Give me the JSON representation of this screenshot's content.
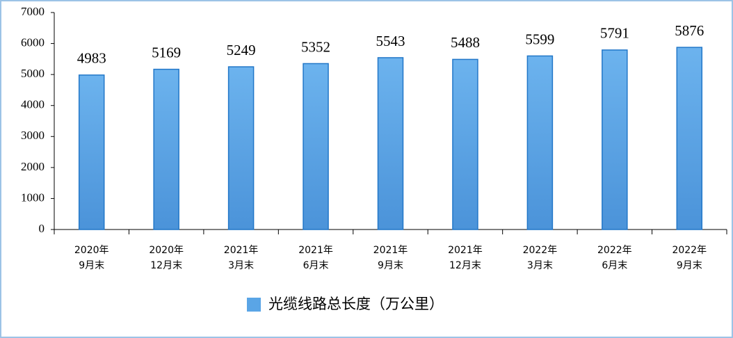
{
  "chart_data": {
    "type": "bar",
    "categories": [
      [
        "2020年",
        "9月末"
      ],
      [
        "2020年",
        "12月末"
      ],
      [
        "2021年",
        "3月末"
      ],
      [
        "2021年",
        "6月末"
      ],
      [
        "2021年",
        "9月末"
      ],
      [
        "2021年",
        "12月末"
      ],
      [
        "2022年",
        "3月末"
      ],
      [
        "2022年",
        "6月末"
      ],
      [
        "2022年",
        "9月末"
      ]
    ],
    "series": [
      {
        "name": "光缆线路总长度（万公里）",
        "color": "#5aa5e6",
        "values": [
          4983,
          5169,
          5249,
          5352,
          5543,
          5488,
          5599,
          5791,
          5876
        ]
      }
    ],
    "ylim": [
      0,
      7000
    ],
    "yticks": [
      0,
      1000,
      2000,
      3000,
      4000,
      5000,
      6000,
      7000
    ],
    "grid": false
  }
}
